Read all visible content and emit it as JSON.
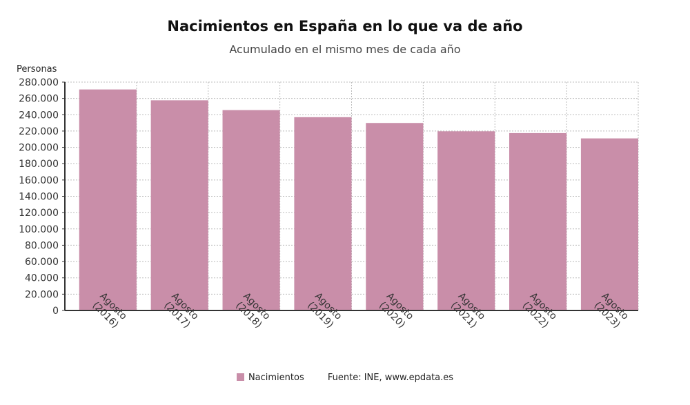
{
  "chart_data": {
    "type": "bar",
    "title": "Nacimientos en España en lo que va de año",
    "subtitle": "Acumulado en el mismo mes de cada año",
    "ylabel": "Personas",
    "xlabel": "",
    "categories": [
      "Agosto (2016)",
      "Agosto (2017)",
      "Agosto (2018)",
      "Agosto (2019)",
      "Agosto (2020)",
      "Agosto (2021)",
      "Agosto (2022)",
      "Agosto (2023)"
    ],
    "series": [
      {
        "name": "Nacimientos",
        "color": "#c98ea9",
        "values": [
          271000,
          257700,
          245700,
          237000,
          229900,
          219700,
          217500,
          211000
        ]
      }
    ],
    "ylim": [
      0,
      280000
    ],
    "yticks": [
      "0",
      "20.000",
      "40.000",
      "60.000",
      "80.000",
      "100.000",
      "120.000",
      "140.000",
      "160.000",
      "180.000",
      "200.000",
      "220.000",
      "240.000",
      "260.000",
      "280.000"
    ],
    "grid": true,
    "legend_position": "bottom",
    "source": "Fuente: INE, www.epdata.es"
  }
}
